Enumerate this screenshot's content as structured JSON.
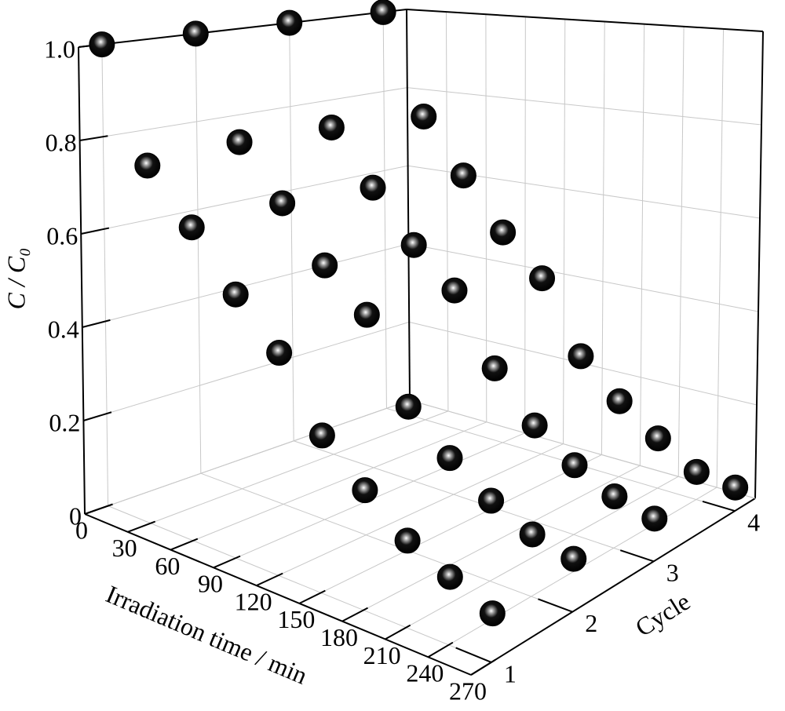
{
  "chart_data": {
    "type": "scatter3d",
    "xlabel": "Irradiation time / min",
    "ylabel": "Cycle",
    "zlabel": "C / C₀",
    "xlim": [
      0,
      270
    ],
    "ylim": [
      0.75,
      4.25
    ],
    "zlim": [
      0,
      1
    ],
    "xticks": [
      0,
      30,
      60,
      90,
      120,
      150,
      180,
      210,
      240,
      270
    ],
    "yticks": [
      1,
      2,
      3,
      4
    ],
    "zticks": [
      0,
      0.2,
      0.4,
      0.6,
      0.8,
      {
        "value": 1,
        "label": "1.0"
      }
    ],
    "grid": true,
    "color": "#000000",
    "x": [
      0,
      30,
      60,
      90,
      120,
      150,
      180,
      210,
      240,
      270
    ],
    "series": [
      {
        "y": 1,
        "values": [
          1.0,
          0.77,
          0.67,
          0.56,
          0.47,
          0.33,
          0.25,
          0.18,
          0.14,
          0.1
        ]
      },
      {
        "y": 2,
        "values": [
          1.0,
          0.78,
          0.67,
          0.56,
          0.48,
          0.31,
          0.23,
          0.17,
          0.13,
          0.11
        ]
      },
      {
        "y": 3,
        "values": [
          1.0,
          0.77,
          0.65,
          0.54,
          0.46,
          0.31,
          0.21,
          0.15,
          0.11,
          0.09
        ]
      },
      {
        "y": 4,
        "values": [
          1.0,
          0.75,
          0.62,
          0.5,
          0.41,
          0.25,
          0.17,
          0.11,
          0.06,
          0.05
        ]
      }
    ]
  }
}
